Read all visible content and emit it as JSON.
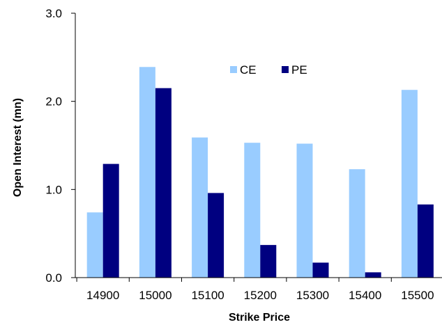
{
  "chart_data": {
    "type": "bar",
    "title": "",
    "xlabel": "Strike Price",
    "ylabel": "Open Interest (mn)",
    "categories": [
      "14900",
      "15000",
      "15100",
      "15200",
      "15300",
      "15400",
      "15500"
    ],
    "series": [
      {
        "name": "CE",
        "color": "#99ccff",
        "values": [
          0.74,
          2.39,
          1.59,
          1.53,
          1.52,
          1.23,
          2.13
        ]
      },
      {
        "name": "PE",
        "color": "#000080",
        "values": [
          1.29,
          2.15,
          0.96,
          0.37,
          0.17,
          0.06,
          0.83
        ]
      }
    ],
    "ylim": [
      0,
      3
    ],
    "yticks": [
      0,
      1,
      2,
      3
    ],
    "ytick_labels": [
      "0.0",
      "1.0",
      "2.0",
      "3.0"
    ],
    "grid": false,
    "legend_position": "top-center"
  }
}
